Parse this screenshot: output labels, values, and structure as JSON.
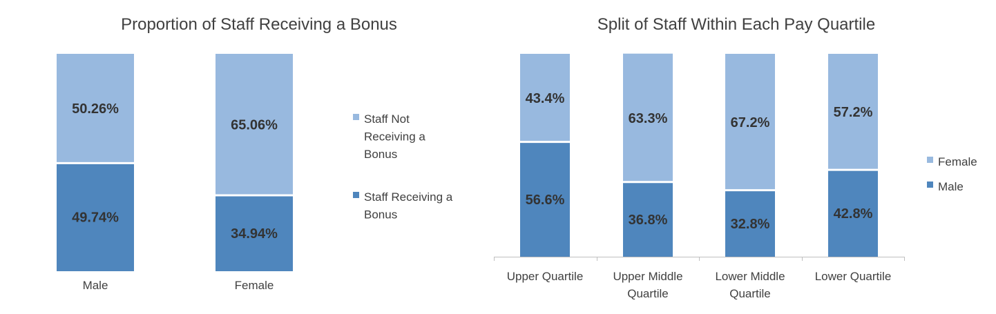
{
  "chart_data": [
    {
      "type": "bar",
      "stacked": true,
      "title": "Proportion of Staff Receiving a Bonus",
      "categories": [
        "Male",
        "Female"
      ],
      "series": [
        {
          "name": "Staff Receiving a Bonus",
          "values": [
            49.74,
            34.94
          ],
          "labels": [
            "49.74%",
            "34.94%"
          ],
          "color": "#4f86bd"
        },
        {
          "name": "Staff Not Receiving a Bonus",
          "values": [
            50.26,
            65.06
          ],
          "labels": [
            "50.26%",
            "65.06%"
          ],
          "color": "#98b9df"
        }
      ],
      "ylim": [
        0,
        100
      ],
      "legend": {
        "position": "right",
        "entries": [
          {
            "name": "Staff Not Receiving a Bonus",
            "lines": [
              "Staff Not",
              "Receiving a",
              "Bonus"
            ],
            "color": "#98b9df"
          },
          {
            "name": "Staff Receiving a Bonus",
            "lines": [
              "Staff Receiving a",
              "Bonus"
            ],
            "color": "#4f86bd"
          }
        ]
      },
      "grid": false
    },
    {
      "type": "bar",
      "stacked": true,
      "title": "Split of Staff Within Each Pay Quartile",
      "categories": [
        "Upper Quartile",
        "Upper Middle Quartile",
        "Lower Middle Quartile",
        "Lower Quartile"
      ],
      "category_lines": [
        [
          "Upper Quartile"
        ],
        [
          "Upper Middle",
          "Quartile"
        ],
        [
          "Lower Middle",
          "Quartile"
        ],
        [
          "Lower Quartile"
        ]
      ],
      "series": [
        {
          "name": "Male",
          "values": [
            56.6,
            36.8,
            32.8,
            42.8
          ],
          "labels": [
            "56.6%",
            "36.8%",
            "32.8%",
            "42.8%"
          ],
          "color": "#4f86bd"
        },
        {
          "name": "Female",
          "values": [
            43.4,
            63.3,
            67.2,
            57.2
          ],
          "labels": [
            "43.4%",
            "63.3%",
            "67.2%",
            "57.2%"
          ],
          "color": "#98b9df"
        }
      ],
      "ylim": [
        0,
        100
      ],
      "legend": {
        "position": "right",
        "entries": [
          {
            "name": "Female",
            "lines": [
              "Female"
            ],
            "color": "#98b9df"
          },
          {
            "name": "Male",
            "lines": [
              "Male"
            ],
            "color": "#4f86bd"
          }
        ]
      },
      "grid": false
    }
  ]
}
